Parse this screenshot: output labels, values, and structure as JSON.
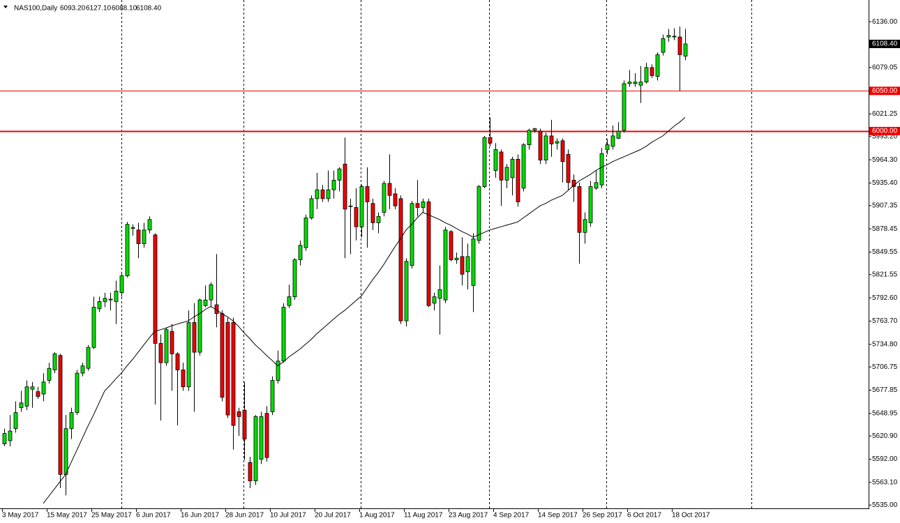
{
  "chart_data": {
    "type": "candlestick",
    "symbol": "NAS100,Daily",
    "ohlc_labels": [
      "6093.20",
      "6127.10",
      "6088.10",
      "6108.40"
    ],
    "categories": [
      "3 May 2017",
      null,
      null,
      null,
      null,
      null,
      null,
      null,
      "15 May 2017",
      null,
      null,
      null,
      null,
      null,
      null,
      null,
      "25 May 2017",
      null,
      null,
      null,
      null,
      null,
      null,
      null,
      "6 Jun 2017",
      null,
      null,
      null,
      null,
      null,
      null,
      null,
      "16 Jun 2017",
      null,
      null,
      null,
      null,
      null,
      null,
      null,
      "28 Jun 2017",
      null,
      null,
      null,
      null,
      null,
      null,
      null,
      "10 Jul 2017",
      null,
      null,
      null,
      null,
      null,
      null,
      null,
      "20 Jul 2017",
      null,
      null,
      null,
      null,
      null,
      null,
      null,
      "1 Aug 2017",
      null,
      null,
      null,
      null,
      null,
      null,
      null,
      "11 Aug 2017",
      null,
      null,
      null,
      null,
      null,
      null,
      null,
      "23 Aug 2017",
      null,
      null,
      null,
      null,
      null,
      null,
      null,
      "4 Sep 2017",
      null,
      null,
      null,
      null,
      null,
      null,
      null,
      "14 Sep 2017",
      null,
      null,
      null,
      null,
      null,
      null,
      null,
      "26 Sep 2017",
      null,
      null,
      null,
      null,
      null,
      null,
      null,
      "6 Oct 2017",
      null,
      null,
      null,
      null,
      null,
      null,
      null,
      "18 Oct 2017",
      null,
      null
    ],
    "open": [
      5611,
      5615,
      5630,
      5656,
      5658,
      5679,
      5676,
      5673,
      5690,
      5703,
      5721,
      5573,
      5630,
      5650,
      5699,
      5705,
      5731,
      5779,
      5788,
      5790,
      5788,
      5799,
      5820,
      5879,
      5877,
      5860,
      5877,
      5871,
      5736,
      5712,
      5751,
      5723,
      5703,
      5682,
      5762,
      5725,
      5783,
      5790,
      5784,
      5773,
      5762,
      5762,
      5651,
      5653,
      5588,
      5565,
      5592,
      5649,
      5651,
      5690,
      5714,
      5783,
      5794,
      5840,
      5855,
      5892,
      5916,
      5927,
      5916,
      5927,
      5939,
      5959,
      5906,
      5905,
      5881,
      5931,
      5910,
      5886,
      5899,
      5935,
      5922,
      5916,
      5764,
      5833,
      5910,
      5905,
      5912,
      5786,
      5792,
      5790,
      5875,
      5840,
      5844,
      5825,
      5808,
      5864,
      5931,
      5992,
      5951,
      5974,
      5939,
      5942,
      5965,
      5929,
      5983,
      6001,
      6000,
      5964,
      5994,
      5985,
      5988,
      5971,
      5939,
      5931,
      5874,
      5886,
      5929,
      5933,
      5977,
      5981,
      5991,
      6001,
      6059,
      6059,
      6057,
      6061,
      6079,
      6068,
      6098,
      6117,
      6117,
      6117,
      6093.2
    ],
    "high": [
      5630,
      5647,
      5664,
      5677,
      5690,
      5688,
      5682,
      5699,
      5712,
      5725,
      5723,
      5647,
      5656,
      5703,
      5712,
      5734,
      5794,
      5794,
      5799,
      5799,
      5814,
      5825,
      5887,
      5884,
      5886,
      5886,
      5894,
      5873,
      5747,
      5756,
      5760,
      5725,
      5712,
      5777,
      5786,
      5792,
      5808,
      5812,
      5847,
      5777,
      5768,
      5768,
      5656,
      5688,
      5595,
      5647,
      5651,
      5658,
      5695,
      5727,
      5786,
      5809,
      5842,
      5864,
      5896,
      5920,
      5948,
      5933,
      5951,
      5951,
      5955,
      5992,
      5916,
      5929,
      5933,
      5955,
      5916,
      5899,
      5938,
      5971,
      5929,
      5920,
      5842,
      5913,
      5939,
      5916,
      5916,
      5799,
      5833,
      5881,
      5877,
      5849,
      5868,
      5860,
      5873,
      5933,
      5994,
      6017,
      5985,
      5977,
      5959,
      5968,
      5971,
      5985,
      6003,
      6004,
      6003,
      5998,
      6014,
      5991,
      5991,
      5977,
      5946,
      5936,
      5899,
      5938,
      5951,
      5979,
      5990,
      6007,
      6011,
      6063,
      6076,
      6072,
      6081,
      6085,
      6083,
      6098,
      6120,
      6127,
      6128,
      6130,
      6127.1
    ],
    "low": [
      5608,
      5608,
      5625,
      5651,
      5653,
      5656,
      5667,
      5664,
      5686,
      5699,
      5556,
      5547,
      5617,
      5647,
      5695,
      5702,
      5729,
      5775,
      5781,
      5777,
      5760,
      5794,
      5818,
      5870,
      5842,
      5855,
      5873,
      5660,
      5640,
      5708,
      5677,
      5634,
      5677,
      5677,
      5651,
      5721,
      5781,
      5781,
      5756,
      5664,
      5643,
      5604,
      5621,
      5591,
      5556,
      5560,
      5586,
      5589,
      5647,
      5686,
      5712,
      5780,
      5790,
      5833,
      5851,
      5890,
      5903,
      5912,
      5912,
      5916,
      5925,
      5842,
      5847,
      5864,
      5868,
      5855,
      5877,
      5873,
      5894,
      5903,
      5903,
      5760,
      5757,
      5829,
      5894,
      5899,
      5781,
      5777,
      5747,
      5786,
      5838,
      5835,
      5808,
      5803,
      5775,
      5860,
      5929,
      5981,
      5942,
      5907,
      5929,
      5920,
      5906,
      5925,
      5977,
      5998,
      5959,
      5959,
      5968,
      5977,
      5936,
      5927,
      5912,
      5835,
      5860,
      5881,
      5927,
      5929,
      5971,
      5977,
      5990,
      5998,
      6055,
      6055,
      6035,
      6059,
      6066,
      6063,
      6094,
      6111,
      6113,
      6050,
      6088.1
    ],
    "close": [
      5624,
      5627,
      5650,
      5662,
      5682,
      5682,
      5670,
      5688,
      5705,
      5723,
      5573,
      5630,
      5650,
      5699,
      5708,
      5731,
      5781,
      5788,
      5792,
      5791,
      5801,
      5820,
      5884,
      5880,
      5860,
      5877,
      5890,
      5736,
      5712,
      5753,
      5723,
      5703,
      5682,
      5762,
      5725,
      5790,
      5790,
      5809,
      5773,
      5669,
      5647,
      5634,
      5645,
      5617,
      5565,
      5645,
      5645,
      5594,
      5690,
      5714,
      5781,
      5794,
      5840,
      5858,
      5892,
      5916,
      5927,
      5916,
      5927,
      5939,
      5953,
      5903,
      5907,
      5881,
      5931,
      5912,
      5886,
      5894,
      5935,
      5920,
      5907,
      5764,
      5838,
      5910,
      5905,
      5912,
      5783,
      5794,
      5803,
      5877,
      5840,
      5842,
      5822,
      5844,
      5866,
      5931,
      5992,
      5985,
      5977,
      5939,
      5955,
      5965,
      5912,
      5983,
      6001,
      6003,
      5964,
      5994,
      5984,
      5987,
      5962,
      5936,
      5931,
      5874,
      5890,
      5931,
      5936,
      5972,
      5983,
      5994,
      6000,
      6059,
      6061,
      6061,
      6061,
      6079,
      6069,
      6095,
      6115,
      6119,
      6118,
      6095,
      6108.4
    ],
    "up_color": "#00dd00",
    "down_color": "#ee0000",
    "ma": {
      "color": "#000000",
      "values": [
        null,
        null,
        null,
        null,
        null,
        null,
        null,
        5537,
        5546,
        5555,
        5564,
        5573,
        5588,
        5603,
        5618,
        5633,
        5647,
        5662,
        5677,
        5684,
        5692,
        5699,
        5708,
        5716,
        5725,
        5734,
        5743,
        5751,
        5753,
        5755,
        5758,
        5760,
        5762,
        5764,
        5769,
        5773,
        5778,
        5782,
        5778,
        5773,
        5769,
        5764,
        5757,
        5749,
        5742,
        5734,
        5728,
        5721,
        5715,
        5708,
        5713,
        5719,
        5724,
        5729,
        5735,
        5741,
        5748,
        5754,
        5760,
        5766,
        5772,
        5777,
        5783,
        5789,
        5795,
        5805,
        5815,
        5824,
        5834,
        5845,
        5856,
        5866,
        5877,
        5884,
        5892,
        5899,
        5896,
        5893,
        5890,
        5886,
        5883,
        5879,
        5875,
        5872,
        5868,
        5871,
        5874,
        5877,
        5879,
        5881,
        5883,
        5885,
        5887,
        5892,
        5897,
        5902,
        5907,
        5910,
        5914,
        5917,
        5920,
        5926,
        5932,
        5938,
        5942,
        5946,
        5951,
        5955,
        5958,
        5962,
        5965,
        5968,
        5971,
        5974,
        5977,
        5981,
        5986,
        5990,
        5994,
        6000,
        6006,
        6011,
        6017
      ]
    },
    "levels": [
      {
        "value": 6050,
        "label": "6050.00",
        "color": "#ee0000"
      },
      {
        "value": 6000,
        "label": "6000.00",
        "color": "#ee0000"
      }
    ],
    "last_price": {
      "value": 6108.4,
      "label": "6108.40"
    },
    "ylim": [
      5530,
      6163
    ],
    "yticks": [
      {
        "value": 6136,
        "label": "6136.00"
      },
      {
        "value": 6079.05,
        "label": "6079.05"
      },
      {
        "value": 6021.25,
        "label": "6021.25"
      },
      {
        "value": 5993.2,
        "label": "5993.20"
      },
      {
        "value": 5964.3,
        "label": "5964.30"
      },
      {
        "value": 5935.4,
        "label": "5935.40"
      },
      {
        "value": 5907.35,
        "label": "5907.35"
      },
      {
        "value": 5878.45,
        "label": "5878.45"
      },
      {
        "value": 5849.55,
        "label": "5849.55"
      },
      {
        "value": 5821.55,
        "label": "5821.55"
      },
      {
        "value": 5792.6,
        "label": "5792.60"
      },
      {
        "value": 5763.7,
        "label": "5763.70"
      },
      {
        "value": 5734.8,
        "label": "5734.80"
      },
      {
        "value": 5706.75,
        "label": "5706.75"
      },
      {
        "value": 5677.85,
        "label": "5677.85"
      },
      {
        "value": 5648.95,
        "label": "5648.95"
      },
      {
        "value": 5620.9,
        "label": "5620.90"
      },
      {
        "value": 5592,
        "label": "5592.00"
      },
      {
        "value": 5563.1,
        "label": "5563.10"
      },
      {
        "value": 5535,
        "label": "5535.00"
      }
    ]
  }
}
